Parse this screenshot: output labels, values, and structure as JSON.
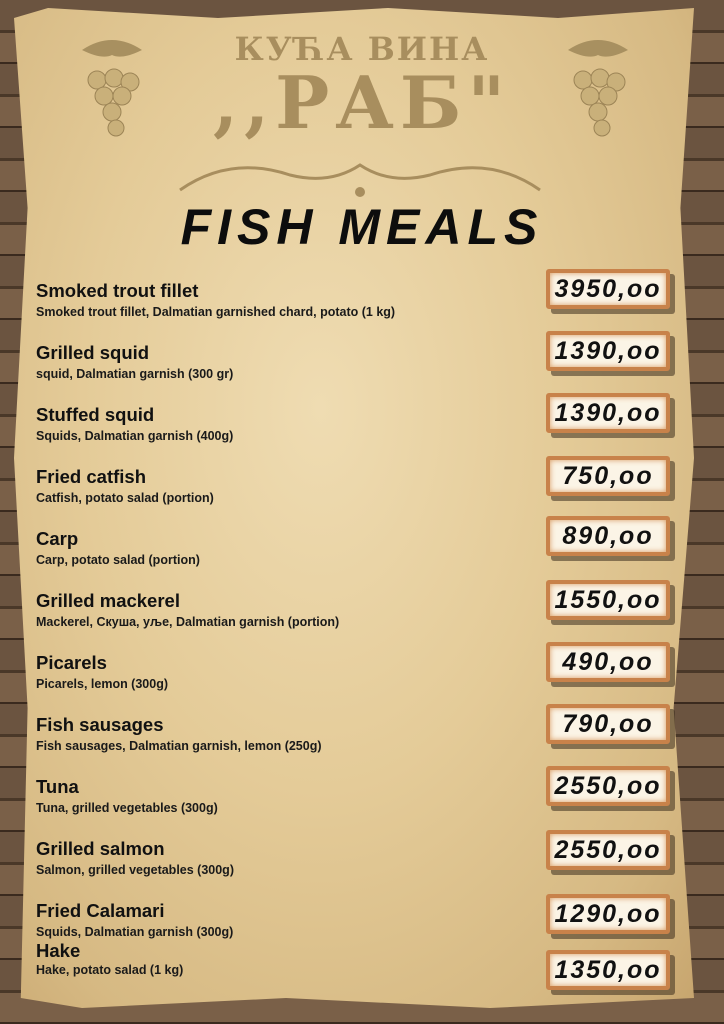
{
  "header": {
    "logo_line1": "КУЋА ВИНА",
    "logo_line2": ",,РАБ\"",
    "title": "FISH MEALS"
  },
  "items": [
    {
      "name": "Smoked trout fillet",
      "desc": "Smoked trout fillet, Dalmatian garnished chard, potato (1 kg)",
      "price": "3950,oo"
    },
    {
      "name": "Grilled squid",
      "desc": "squid, Dalmatian garnish (300 gr)",
      "price": "1390,oo"
    },
    {
      "name": "Stuffed squid",
      "desc": "Squids, Dalmatian garnish (400g)",
      "price": "1390,oo"
    },
    {
      "name": "Fried catfish",
      "desc": "Catfish, potato salad (portion)",
      "price": "750,oo"
    },
    {
      "name": "Carp",
      "desc": "Carp, potato salad (portion)",
      "price": "890,oo"
    },
    {
      "name": "Grilled mackerel",
      "desc": "Mackerel, Скуша, уље, Dalmatian garnish (portion)",
      "price": "1550,oo"
    },
    {
      "name": "Picarels",
      "desc": "Picarels, lemon (300g)",
      "price": "490,oo"
    },
    {
      "name": "Fish sausages",
      "desc": "Fish sausages, Dalmatian garnish, lemon (250g)",
      "price": "790,oo"
    },
    {
      "name": "Tuna",
      "desc": "Tuna, grilled vegetables (300g)",
      "price": "2550,oo"
    },
    {
      "name": "Grilled salmon",
      "desc": "Salmon, grilled vegetables (300g)",
      "price": "2550,oo"
    },
    {
      "name": "Fried Calamari",
      "desc": "Squids, Dalmatian garnish (300g)",
      "price": "1290,oo"
    },
    {
      "name": "Hake",
      "desc": "Hake, potato salad (1 kg)",
      "price": "1350,oo"
    }
  ]
}
